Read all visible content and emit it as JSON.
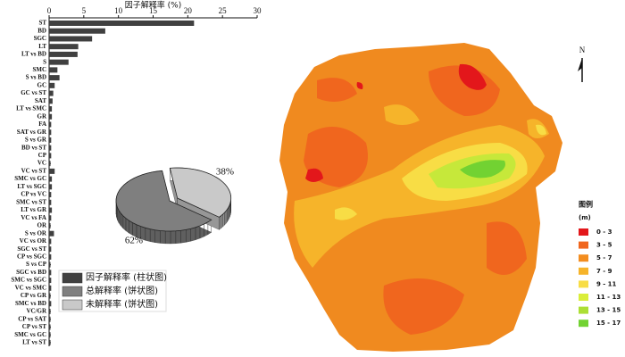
{
  "chart_data": [
    {
      "type": "bar",
      "orientation": "horizontal",
      "xlabel": "因子解释率 (%)",
      "categories": [
        "ST",
        "BD",
        "SGC",
        "LT",
        "LT vs BD",
        "S",
        "SMC",
        "S vs BD",
        "GC",
        "GC vs ST",
        "SAT",
        "LT vs SMC",
        "GR",
        "FA",
        "SAT vs GR",
        "S vs GR",
        "BD vs ST",
        "CP",
        "VC",
        "VC vs ST",
        "SMC vs GC",
        "LT vs SGC",
        "CP vs VC",
        "SMC vs ST",
        "LT vs GR",
        "VC vs FA",
        "OR",
        "S vs OR",
        "VC vs OR",
        "SGC vs ST",
        "CP vs SGC",
        "S vs CP",
        "SGC vs BD",
        "SMC vs SGC",
        "VC vs SMC",
        "CP vs GR",
        "SMC vs BD",
        "VC/GR",
        "CP vs SAT",
        "CP vs ST",
        "SMC vs GC",
        "LT vs ST"
      ],
      "series": [
        {
          "name": "因子解释率 (柱状图)",
          "color": "#404040",
          "values": [
            20.9,
            8.1,
            6.2,
            4.2,
            4.1,
            2.8,
            1.2,
            1.5,
            0.8,
            0.6,
            0.5,
            0.4,
            0.4,
            0.3,
            0.3,
            0.3,
            0.3,
            0.3,
            0.2,
            0.8,
            0.4,
            0.4,
            0.3,
            0.3,
            0.4,
            0.3,
            0.2,
            0.7,
            0.3,
            0.3,
            0.3,
            0.2,
            0.3,
            0.3,
            0.3,
            0.2,
            0.3,
            0.2,
            0.2,
            0.2,
            0.2,
            0.2
          ]
        }
      ],
      "xlim": [
        0,
        30
      ],
      "xticks": [
        0,
        5,
        10,
        15,
        20,
        25,
        30
      ]
    },
    {
      "type": "pie",
      "categories": [
        "总解释率 (饼状图)",
        "未解释率 (饼状图)"
      ],
      "colors": [
        "#7f7f7f",
        "#c9c9c9"
      ],
      "values": [
        62,
        38
      ],
      "value_labels": [
        "62%",
        "38%"
      ]
    }
  ],
  "map": {
    "north": "N",
    "legend_title": "图例",
    "unit": "(m)",
    "classes": [
      {
        "label": "0 - 3",
        "color": "#e3171b"
      },
      {
        "label": "3 - 5",
        "color": "#f0661e"
      },
      {
        "label": "5 - 7",
        "color": "#f38d1f"
      },
      {
        "label": "7 - 9",
        "color": "#f6b42a"
      },
      {
        "label": "9 - 11",
        "color": "#f8dd45"
      },
      {
        "label": "11 - 13",
        "color": "#daee3a"
      },
      {
        "label": "13 - 15",
        "color": "#acdf35"
      },
      {
        "label": "15 - 17",
        "color": "#72d232"
      }
    ]
  }
}
